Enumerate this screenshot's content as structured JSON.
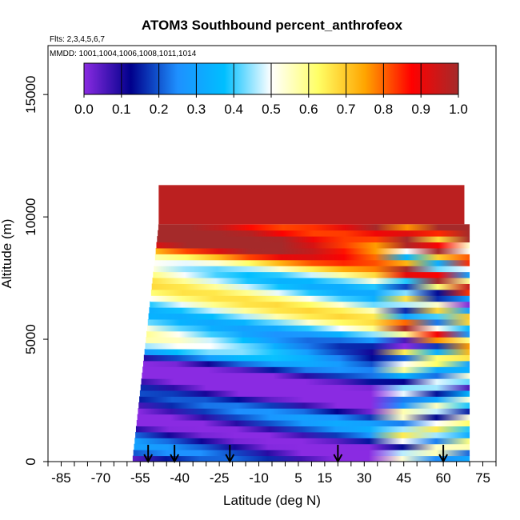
{
  "chart_data": {
    "type": "heatmap",
    "title": "ATOM3 Southbound percent_anthrofeox",
    "flights_label": "Flts: 2,3,4,5,6,7",
    "dates_label": "MMDD: 1001,1004,1006,1008,1011,1014",
    "xlabel": "Latitude (deg N)",
    "ylabel": "Altitude (m)",
    "xlim": [
      -90,
      80
    ],
    "ylim": [
      0,
      17000
    ],
    "x_ticks": [
      -85,
      -70,
      -55,
      -40,
      -25,
      -10,
      5,
      15,
      30,
      45,
      60,
      75
    ],
    "y_ticks": [
      0,
      5000,
      10000,
      15000
    ],
    "colorbar": {
      "ticks": [
        "0.0",
        "0.1",
        "0.2",
        "0.3",
        "0.4",
        "0.5",
        "0.6",
        "0.7",
        "0.8",
        "0.9",
        "1.0"
      ],
      "range": [
        0,
        1
      ],
      "stops": [
        "#8a2be2",
        "#00008b",
        "#1e90ff",
        "#00bfff",
        "#ffffff",
        "#ffff66",
        "#ffa500",
        "#ff0000",
        "#a52a2a"
      ]
    },
    "arrow_latitudes": [
      -52,
      -42,
      -21,
      20,
      60
    ],
    "grid": false,
    "legend_placement": "top"
  }
}
